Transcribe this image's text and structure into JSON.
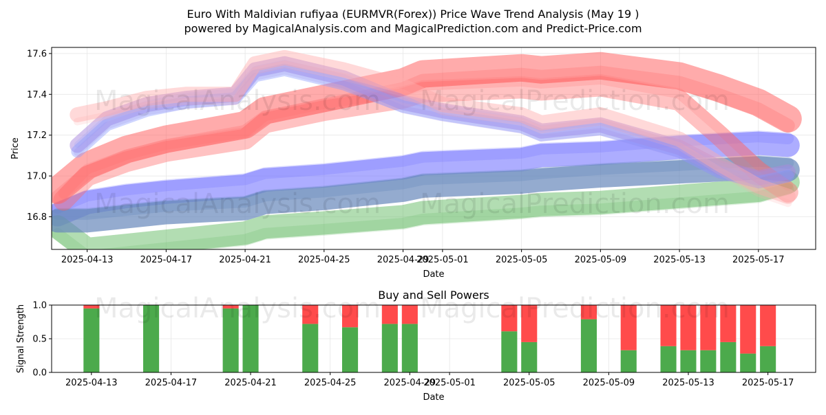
{
  "title_line1": "Euro With Maldivian rufiyaa (EURMVR(Forex)) Price Wave Trend Analysis (May 19 )",
  "title_line2": "powered by MagicalAnalysis.com and MagicalPrediction.com and Predict-Price.com",
  "watermark_1": "MagicalAnalysis.com",
  "watermark_2": "MagicalPrediction.com",
  "chart_data": [
    {
      "type": "line",
      "title": "",
      "xlabel": "Date",
      "ylabel": "Price",
      "x_ticks": [
        "2025-04-13",
        "2025-04-17",
        "2025-04-21",
        "2025-04-25",
        "2025-04-29",
        "2025-05-01",
        "2025-05-05",
        "2025-05-09",
        "2025-05-13",
        "2025-05-17"
      ],
      "x_tick_days": [
        0,
        4,
        8,
        12,
        16,
        18,
        22,
        26,
        30,
        34
      ],
      "xlim_days": [
        -1.8,
        36.9
      ],
      "ylim": [
        16.64,
        17.63
      ],
      "y_ticks": [
        16.8,
        17.0,
        17.2,
        17.4,
        17.6
      ],
      "y_tick_labels": [
        "16.8",
        "17.0",
        "17.2",
        "17.4",
        "17.6"
      ],
      "grid": true,
      "series": [
        {
          "name": "blue band",
          "color": "#7777ff",
          "opacity": 0.6,
          "width": 34,
          "x": [
            -1.5,
            0,
            2,
            4,
            8,
            9,
            12,
            16,
            17,
            22,
            23,
            26,
            30,
            34,
            35.5
          ],
          "values": [
            16.81,
            16.87,
            16.9,
            16.92,
            16.95,
            16.98,
            17.0,
            17.04,
            17.06,
            17.08,
            17.1,
            17.11,
            17.14,
            17.16,
            17.15
          ]
        },
        {
          "name": "green band",
          "color": "#66bb66",
          "opacity": 0.5,
          "width": 34,
          "x": [
            -1.5,
            0,
            2,
            4,
            8,
            9,
            12,
            16,
            17,
            22,
            23,
            26,
            30,
            34,
            35.5
          ],
          "values": [
            16.75,
            16.64,
            16.66,
            16.68,
            16.72,
            16.75,
            16.77,
            16.8,
            16.82,
            16.85,
            16.86,
            16.87,
            16.9,
            16.93,
            16.97
          ]
        },
        {
          "name": "slate band",
          "color": "#6688bb",
          "opacity": 0.7,
          "width": 34,
          "x": [
            -1.5,
            0,
            2,
            4,
            8,
            9,
            12,
            16,
            17,
            22,
            23,
            26,
            30,
            34,
            35.5
          ],
          "values": [
            16.78,
            16.78,
            16.8,
            16.82,
            16.84,
            16.87,
            16.89,
            16.93,
            16.95,
            16.97,
            16.98,
            17.0,
            17.02,
            17.04,
            17.03
          ]
        },
        {
          "name": "red band main",
          "color": "#ff6666",
          "opacity": 0.55,
          "width": 40,
          "x": [
            -1.5,
            0,
            2,
            4,
            8,
            9,
            12,
            16,
            17,
            22,
            23,
            26,
            30,
            32,
            34,
            35.5
          ],
          "values": [
            16.93,
            17.05,
            17.13,
            17.18,
            17.25,
            17.32,
            17.38,
            17.46,
            17.5,
            17.53,
            17.52,
            17.54,
            17.49,
            17.43,
            17.36,
            17.28
          ]
        },
        {
          "name": "red band lower",
          "color": "#ff6666",
          "opacity": 0.4,
          "width": 30,
          "x": [
            -1.2,
            0,
            2,
            4,
            8,
            9,
            12,
            16,
            17,
            22,
            23,
            26,
            30,
            32,
            34,
            35.5
          ],
          "values": [
            16.88,
            17.0,
            17.07,
            17.12,
            17.18,
            17.26,
            17.32,
            17.38,
            17.41,
            17.43,
            17.42,
            17.44,
            17.37,
            17.2,
            17.02,
            16.92
          ]
        },
        {
          "name": "purple wave",
          "color": "#aa88dd",
          "opacity": 0.5,
          "width": 22,
          "x": [
            -0.5,
            1,
            3,
            5,
            7.5,
            8.5,
            10,
            13,
            16,
            18,
            22,
            23,
            26,
            30,
            32,
            34,
            35.5
          ],
          "values": [
            17.15,
            17.28,
            17.35,
            17.38,
            17.4,
            17.52,
            17.55,
            17.48,
            17.36,
            17.32,
            17.26,
            17.22,
            17.25,
            17.14,
            17.04,
            16.99,
            17.02
          ]
        },
        {
          "name": "blue wave",
          "color": "#8899ff",
          "opacity": 0.4,
          "width": 18,
          "x": [
            -0.5,
            1,
            3,
            5,
            7.5,
            8.5,
            10,
            13,
            16,
            18,
            22,
            23,
            26,
            30,
            32,
            34,
            35.5
          ],
          "values": [
            17.12,
            17.25,
            17.32,
            17.36,
            17.38,
            17.49,
            17.52,
            17.45,
            17.34,
            17.3,
            17.24,
            17.2,
            17.23,
            17.12,
            17.02,
            16.97,
            17.0
          ]
        },
        {
          "name": "pink wave",
          "color": "#ffaaaa",
          "opacity": 0.45,
          "width": 22,
          "x": [
            -0.5,
            1,
            3,
            5,
            7.5,
            8.5,
            10,
            13,
            16,
            18,
            22,
            23,
            26,
            30,
            32,
            34,
            35.5
          ],
          "values": [
            17.3,
            17.33,
            17.38,
            17.4,
            17.4,
            17.55,
            17.58,
            17.52,
            17.44,
            17.35,
            17.3,
            17.26,
            17.3,
            17.18,
            17.06,
            16.95,
            16.9
          ]
        }
      ]
    },
    {
      "type": "bar",
      "title": "Buy and Sell Powers",
      "xlabel": "Date",
      "ylabel": "Signal Strength",
      "x_ticks": [
        "2025-04-13",
        "2025-04-17",
        "2025-04-21",
        "2025-04-25",
        "2025-04-29",
        "2025-05-01",
        "2025-05-05",
        "2025-05-09",
        "2025-05-13",
        "2025-05-17"
      ],
      "x_tick_days": [
        0,
        4,
        8,
        12,
        16,
        18,
        22,
        26,
        30,
        34
      ],
      "xlim_days": [
        -2,
        36.4
      ],
      "ylim": [
        0,
        1
      ],
      "y_ticks": [
        0.0,
        0.5,
        1.0
      ],
      "y_tick_labels": [
        "0.0",
        "0.5",
        "1.0"
      ],
      "grid": true,
      "buy_color": "#4caa4c",
      "sell_color": "#ff4b4b",
      "days": [
        0,
        3,
        7,
        8,
        11,
        13,
        15,
        16,
        21,
        22,
        25,
        27,
        29,
        30,
        31,
        32,
        33,
        34
      ],
      "buy": [
        0.95,
        1.0,
        0.95,
        1.0,
        0.72,
        0.67,
        0.72,
        0.72,
        0.61,
        0.45,
        0.79,
        0.33,
        0.39,
        0.33,
        0.33,
        0.45,
        0.28,
        0.39
      ],
      "sell": [
        0.05,
        0.0,
        0.05,
        0.0,
        0.28,
        0.33,
        0.28,
        0.28,
        0.39,
        0.55,
        0.21,
        0.67,
        0.61,
        0.67,
        0.67,
        0.55,
        0.72,
        0.61
      ]
    }
  ]
}
